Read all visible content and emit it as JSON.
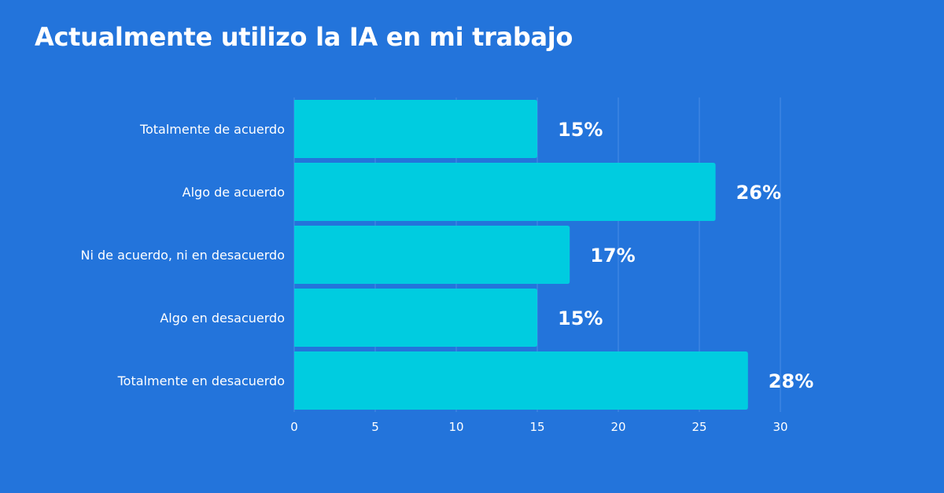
{
  "chart_data": {
    "type": "bar",
    "orientation": "horizontal",
    "title": "Actualmente utilizo la IA en mi trabajo",
    "categories": [
      "Totalmente de acuerdo",
      "Algo de acuerdo",
      "Ni de acuerdo, ni en desacuerdo",
      "Algo en desacuerdo",
      "Totalmente en desacuerdo"
    ],
    "values": [
      15,
      26,
      17,
      15,
      28
    ],
    "value_labels": [
      "15%",
      "26%",
      "17%",
      "15%",
      "28%"
    ],
    "xlim": [
      0,
      30
    ],
    "xticks": [
      0,
      5,
      10,
      15,
      20,
      25,
      30
    ],
    "grid": true,
    "legend": "none",
    "colors": {
      "background": "#2374db",
      "bar": "#00cce0",
      "grid": "#4a8ce6",
      "text": "#ffffff"
    }
  }
}
